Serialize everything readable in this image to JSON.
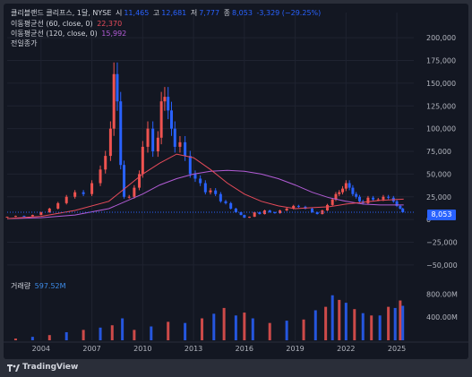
{
  "legend": {
    "symbol": "클리블랜드 클리프스, 1달, NYSE",
    "open_label": "시",
    "open_value": "11,465",
    "high_label": "고",
    "high_value": "12,681",
    "low_label": "저",
    "low_value": "7,777",
    "close_label": "종",
    "close_value": "8,053",
    "change_value": "-3,329 (−29.25%)",
    "ma60_label": "이동평균선 (60, close, 0)",
    "ma60_value": "22,370",
    "ma120_label": "이동평균선 (120, close, 0)",
    "ma120_value": "15,992",
    "prev_close_label": "전일종가"
  },
  "volume_legend": {
    "label": "거래량",
    "value": "597.52M"
  },
  "last_price_tag": "8,053",
  "brand": "TradingView",
  "colors": {
    "up": "#ef5350",
    "down": "#2962ff",
    "ma60": "#e84b5a",
    "ma120": "#b35cd6",
    "background": "#131722"
  },
  "chart_data": {
    "type": "candlestick",
    "price_axis": {
      "ticks": [
        200000,
        175000,
        150000,
        125000,
        100000,
        75000,
        50000,
        25000,
        0,
        -25000,
        -50000
      ],
      "tick_labels": [
        "200,000",
        "175,000",
        "150,000",
        "125,000",
        "100,000",
        "75,000",
        "50,000",
        "25,000",
        "0",
        "−25,000",
        "−50,000"
      ],
      "range": [
        -58000,
        210000
      ]
    },
    "volume_axis": {
      "ticks": [
        800,
        400
      ],
      "tick_labels": [
        "800.00M",
        "400.00M"
      ],
      "range": [
        0,
        900
      ]
    },
    "time_axis": {
      "ticks": [
        2004,
        2007,
        2010,
        2013,
        2016,
        2019,
        2022,
        2025
      ],
      "tick_labels": [
        "2004",
        "2007",
        "2010",
        "2013",
        "2016",
        "2019",
        "2022",
        "2025"
      ],
      "range": [
        2002.0,
        2026.0
      ]
    },
    "price_series": {
      "x": [
        2002.0,
        2002.5,
        2003.0,
        2003.5,
        2004.0,
        2004.5,
        2005.0,
        2005.5,
        2006.0,
        2006.5,
        2007.0,
        2007.5,
        2007.8,
        2008.1,
        2008.3,
        2008.5,
        2008.7,
        2008.9,
        2009.2,
        2009.5,
        2009.8,
        2010.0,
        2010.3,
        2010.6,
        2010.9,
        2011.1,
        2011.3,
        2011.5,
        2011.7,
        2011.9,
        2012.2,
        2012.5,
        2012.8,
        2013.1,
        2013.4,
        2013.7,
        2014.0,
        2014.3,
        2014.6,
        2014.9,
        2015.2,
        2015.5,
        2015.8,
        2016.0,
        2016.3,
        2016.6,
        2016.9,
        2017.2,
        2017.5,
        2017.8,
        2018.1,
        2018.5,
        2018.9,
        2019.2,
        2019.6,
        2020.0,
        2020.3,
        2020.6,
        2020.9,
        2021.2,
        2021.4,
        2021.6,
        2021.8,
        2022.0,
        2022.2,
        2022.4,
        2022.6,
        2022.8,
        2023.0,
        2023.3,
        2023.6,
        2023.9,
        2024.2,
        2024.5,
        2024.8,
        2025.0,
        2025.2,
        2025.35
      ],
      "close": [
        3000,
        4000,
        3500,
        5000,
        8000,
        12000,
        18000,
        25000,
        30000,
        28000,
        40000,
        55000,
        70000,
        100000,
        160000,
        130000,
        60000,
        25000,
        25000,
        35000,
        50000,
        80000,
        100000,
        75000,
        90000,
        130000,
        135000,
        120000,
        100000,
        80000,
        85000,
        70000,
        50000,
        45000,
        40000,
        30000,
        32000,
        28000,
        20000,
        18000,
        12000,
        8000,
        5000,
        2000,
        3000,
        8000,
        6000,
        10000,
        8000,
        7000,
        10000,
        12000,
        15000,
        14000,
        12000,
        8000,
        6000,
        10000,
        16000,
        22000,
        28000,
        30000,
        34000,
        40000,
        35000,
        28000,
        25000,
        20000,
        18000,
        24000,
        22000,
        22000,
        25000,
        24000,
        20000,
        15000,
        12000,
        8053
      ]
    },
    "ma60": {
      "x": [
        2002,
        2004,
        2006,
        2008,
        2009,
        2010,
        2011,
        2012,
        2013,
        2014,
        2015,
        2016,
        2017,
        2018,
        2019,
        2020,
        2021,
        2022,
        2023,
        2024,
        2025.4
      ],
      "y": [
        1000,
        3500,
        10000,
        20000,
        35000,
        50000,
        62000,
        72000,
        68000,
        55000,
        40000,
        28000,
        20000,
        15000,
        12000,
        13000,
        14000,
        17000,
        19000,
        21000,
        22370
      ]
    },
    "ma120": {
      "x": [
        2002,
        2004,
        2006,
        2008,
        2010,
        2011,
        2012,
        2013,
        2014,
        2015,
        2016,
        2017,
        2018,
        2019,
        2020,
        2021,
        2022,
        2023,
        2024,
        2025.4
      ],
      "y": [
        1000,
        2000,
        5000,
        12000,
        28000,
        38000,
        45000,
        50000,
        53000,
        54000,
        53000,
        50000,
        45000,
        38000,
        30000,
        24000,
        20000,
        17000,
        16000,
        15992
      ]
    },
    "volume_million": {
      "x": [
        2002.5,
        2003.5,
        2004.5,
        2005.5,
        2006.5,
        2007.5,
        2008.2,
        2008.8,
        2009.5,
        2010.5,
        2011.5,
        2012.5,
        2013.5,
        2014.2,
        2014.8,
        2015.5,
        2016.0,
        2016.5,
        2017.5,
        2018.5,
        2019.5,
        2020.2,
        2020.8,
        2021.2,
        2021.6,
        2022.0,
        2022.5,
        2023.0,
        2023.5,
        2024.0,
        2024.5,
        2024.9,
        2025.2,
        2025.35
      ],
      "values": [
        30,
        60,
        90,
        140,
        180,
        220,
        260,
        380,
        180,
        240,
        320,
        300,
        380,
        460,
        560,
        430,
        480,
        380,
        300,
        340,
        360,
        520,
        580,
        780,
        700,
        650,
        540,
        470,
        430,
        430,
        580,
        560,
        690,
        597.52
      ]
    }
  }
}
